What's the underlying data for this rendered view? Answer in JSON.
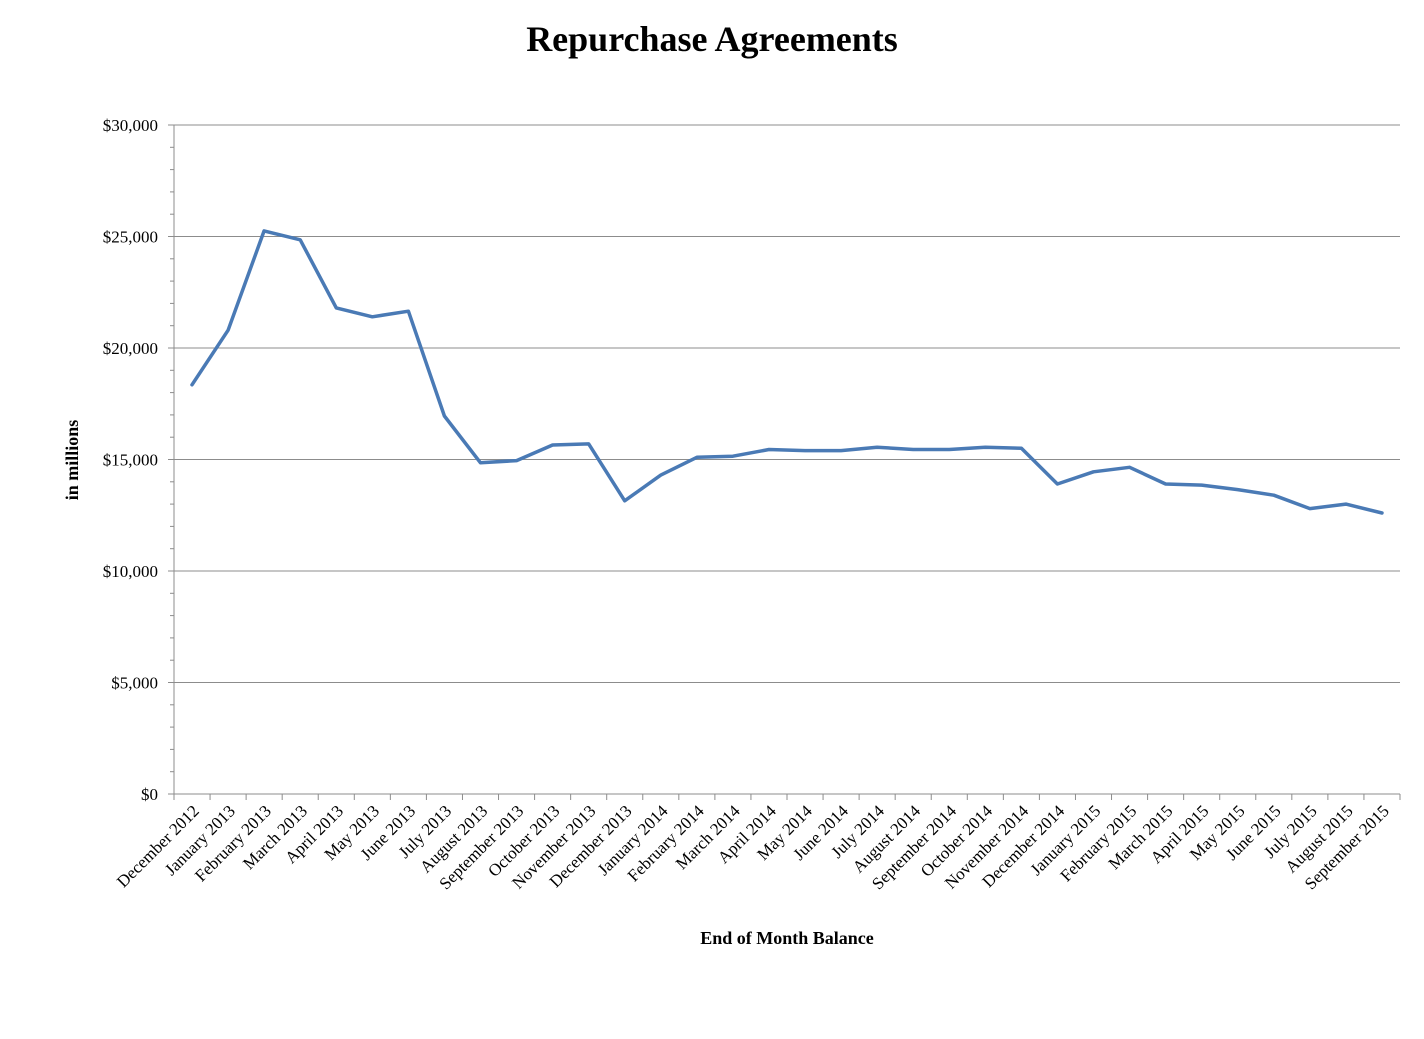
{
  "chart_data": {
    "type": "line",
    "title": "Repurchase Agreements",
    "xlabel": "End of Month Balance",
    "ylabel": "in millions",
    "ylim": [
      0,
      30000
    ],
    "y_ticks": [
      0,
      5000,
      10000,
      15000,
      20000,
      25000,
      30000
    ],
    "y_tick_labels": [
      "$0",
      "$5,000",
      "$10,000",
      "$15,000",
      "$20,000",
      "$25,000",
      "$30,000"
    ],
    "grid": true,
    "legend": "none",
    "line_color": "#4a7ab5",
    "categories": [
      "December 2012",
      "January 2013",
      "February 2013",
      "March 2013",
      "April 2013",
      "May 2013",
      "June 2013",
      "July 2013",
      "August 2013",
      "September 2013",
      "October 2013",
      "November 2013",
      "December 2013",
      "January 2014",
      "February 2014",
      "March 2014",
      "April 2014",
      "May 2014",
      "June 2014",
      "July 2014",
      "August 2014",
      "September 2014",
      "October 2014",
      "November 2014",
      "December 2014",
      "January 2015",
      "February 2015",
      "March 2015",
      "April 2015",
      "May 2015",
      "June 2015",
      "July 2015",
      "August 2015",
      "September 2015"
    ],
    "series": [
      {
        "values": [
          18350,
          20800,
          25250,
          24850,
          21800,
          21400,
          21650,
          16950,
          14850,
          14950,
          15650,
          15700,
          13150,
          14300,
          15100,
          15150,
          15450,
          15400,
          15400,
          15550,
          15450,
          15450,
          15550,
          15500,
          13900,
          14450,
          14650,
          13900,
          13850,
          13650,
          13400,
          12800,
          13000,
          12600
        ]
      }
    ]
  }
}
